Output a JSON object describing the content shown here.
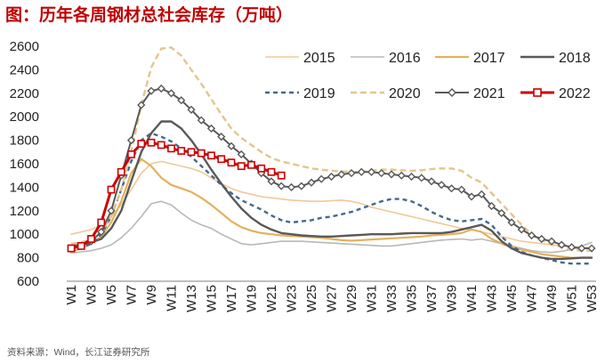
{
  "title": "图：历年各周钢材总社会库存（万吨）",
  "source": "资料来源：Wind，长江证券研究所",
  "chart_data": {
    "type": "line",
    "title": "历年各周钢材总社会库存（万吨）",
    "xlabel": "",
    "ylabel": "",
    "ylim": [
      600,
      2600
    ],
    "yticks": [
      600,
      800,
      1000,
      1200,
      1400,
      1600,
      1800,
      2000,
      2200,
      2400,
      2600
    ],
    "xticks": [
      "W1",
      "W3",
      "W5",
      "W7",
      "W9",
      "W11",
      "W13",
      "W15",
      "W17",
      "W19",
      "W21",
      "W23",
      "W25",
      "W27",
      "W29",
      "W31",
      "W33",
      "W35",
      "W37",
      "W39",
      "W41",
      "W43",
      "W45",
      "W47",
      "W49",
      "W51",
      "W53"
    ],
    "weeks": 53,
    "legend_position": "top-right",
    "series": [
      {
        "name": "2015",
        "color": "#f0c89a",
        "dash": "solid",
        "width": 1.6,
        "marker": "none",
        "values": [
          1000,
          1020,
          1040,
          1080,
          1150,
          1250,
          1380,
          1520,
          1600,
          1620,
          1600,
          1580,
          1560,
          1530,
          1480,
          1430,
          1390,
          1360,
          1340,
          1320,
          1310,
          1300,
          1290,
          1285,
          1280,
          1280,
          1285,
          1290,
          1280,
          1260,
          1230,
          1210,
          1190,
          1170,
          1150,
          1130,
          1110,
          1090,
          1070,
          1050,
          1040,
          1020,
          1000,
          980,
          960,
          940,
          930,
          920,
          910,
          900,
          895,
          890,
          885
        ]
      },
      {
        "name": "2016",
        "color": "#b8b8b8",
        "dash": "solid",
        "width": 1.6,
        "marker": "none",
        "values": [
          840,
          850,
          860,
          880,
          910,
          970,
          1050,
          1150,
          1260,
          1280,
          1250,
          1180,
          1120,
          1080,
          1050,
          1000,
          960,
          920,
          910,
          920,
          930,
          940,
          940,
          940,
          935,
          930,
          925,
          920,
          915,
          910,
          905,
          900,
          900,
          910,
          920,
          930,
          940,
          950,
          955,
          960,
          950,
          960,
          940,
          920,
          900,
          880,
          860,
          850,
          845,
          855,
          870,
          900,
          930
        ]
      },
      {
        "name": "2017",
        "color": "#e3b15d",
        "dash": "solid",
        "width": 2.2,
        "marker": "none",
        "values": [
          850,
          880,
          920,
          980,
          1100,
          1280,
          1520,
          1640,
          1580,
          1480,
          1420,
          1390,
          1360,
          1310,
          1250,
          1180,
          1110,
          1060,
          1030,
          1010,
          1000,
          990,
          985,
          980,
          975,
          970,
          960,
          950,
          945,
          950,
          955,
          960,
          965,
          970,
          975,
          980,
          990,
          995,
          1000,
          1010,
          1040,
          1020,
          960,
          920,
          890,
          870,
          850,
          830,
          820,
          810,
          800,
          800,
          800
        ]
      },
      {
        "name": "2018",
        "color": "#595959",
        "dash": "solid",
        "width": 2.4,
        "marker": "none",
        "values": [
          900,
          910,
          930,
          960,
          1050,
          1200,
          1450,
          1700,
          1860,
          1960,
          1960,
          1900,
          1800,
          1680,
          1550,
          1430,
          1320,
          1220,
          1140,
          1080,
          1040,
          1010,
          1000,
          990,
          985,
          980,
          980,
          985,
          990,
          995,
          1000,
          1000,
          1000,
          1005,
          1010,
          1010,
          1010,
          1010,
          1020,
          1040,
          1060,
          1080,
          1030,
          940,
          880,
          840,
          820,
          800,
          790,
          790,
          795,
          800,
          800
        ]
      },
      {
        "name": "2019",
        "color": "#44698c",
        "dash": "5,4",
        "width": 2.4,
        "marker": "none",
        "values": [
          860,
          880,
          920,
          1000,
          1150,
          1380,
          1620,
          1800,
          1860,
          1830,
          1790,
          1730,
          1660,
          1580,
          1500,
          1420,
          1350,
          1290,
          1250,
          1210,
          1160,
          1120,
          1100,
          1110,
          1120,
          1140,
          1150,
          1170,
          1190,
          1220,
          1250,
          1280,
          1300,
          1300,
          1280,
          1240,
          1190,
          1150,
          1120,
          1110,
          1120,
          1130,
          1080,
          980,
          900,
          850,
          820,
          800,
          780,
          760,
          750,
          750,
          750
        ]
      },
      {
        "name": "2020",
        "color": "#e3c58d",
        "dash": "7,4",
        "width": 2.4,
        "marker": "none",
        "values": [
          920,
          930,
          960,
          1020,
          1150,
          1380,
          1700,
          2100,
          2420,
          2580,
          2590,
          2520,
          2400,
          2280,
          2150,
          2020,
          1900,
          1820,
          1760,
          1700,
          1650,
          1620,
          1600,
          1580,
          1560,
          1550,
          1540,
          1535,
          1530,
          1530,
          1540,
          1550,
          1550,
          1545,
          1540,
          1545,
          1555,
          1560,
          1560,
          1540,
          1480,
          1440,
          1350,
          1260,
          1170,
          1080,
          1000,
          950,
          910,
          890,
          870,
          860,
          860
        ]
      },
      {
        "name": "2021",
        "color": "#595959",
        "dash": "solid",
        "width": 2.0,
        "marker": "diamond",
        "values": [
          880,
          900,
          940,
          1020,
          1200,
          1500,
          1800,
          2100,
          2220,
          2240,
          2200,
          2140,
          2060,
          1970,
          1900,
          1830,
          1750,
          1680,
          1600,
          1520,
          1450,
          1410,
          1400,
          1410,
          1440,
          1470,
          1490,
          1510,
          1520,
          1530,
          1530,
          1520,
          1510,
          1500,
          1490,
          1480,
          1450,
          1420,
          1390,
          1380,
          1320,
          1340,
          1240,
          1180,
          1100,
          1040,
          990,
          960,
          940,
          910,
          890,
          880,
          880
        ]
      },
      {
        "name": "2022",
        "color": "#cc0000",
        "dash": "solid",
        "width": 3.0,
        "marker": "square",
        "values": [
          880,
          900,
          960,
          1100,
          1380,
          1530,
          1680,
          1770,
          1780,
          1760,
          1730,
          1710,
          1700,
          1690,
          1670,
          1640,
          1610,
          1580,
          1590,
          1560,
          1530,
          1500
        ]
      }
    ]
  }
}
